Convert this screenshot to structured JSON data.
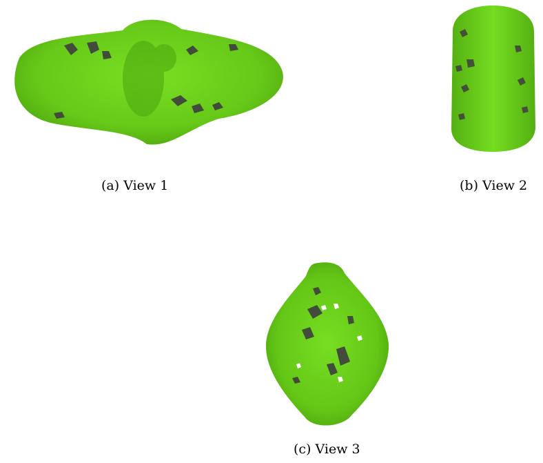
{
  "figure": {
    "panels": [
      {
        "caption": "(a) View 1"
      },
      {
        "caption": "(b) View 2"
      },
      {
        "caption": "(c) View 3"
      }
    ],
    "colors": {
      "surface": "#6ad11a",
      "surface_dark": "#4fa80f",
      "interior": "#4a4a4a",
      "background": "#ffffff"
    }
  }
}
